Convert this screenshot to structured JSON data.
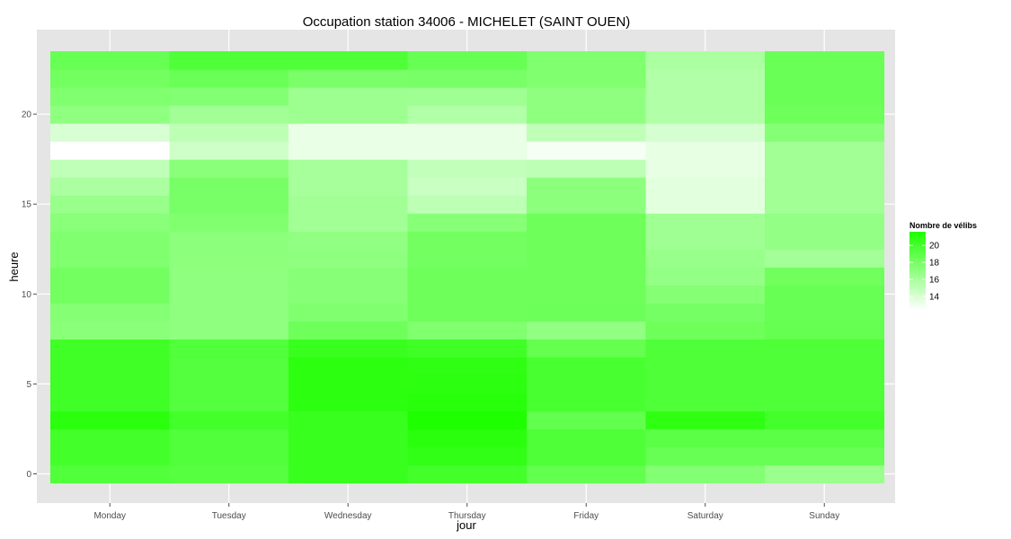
{
  "chart_data": {
    "type": "heatmap",
    "title": "Occupation station 34006 - MICHELET (SAINT OUEN)",
    "xlabel": "jour",
    "ylabel": "heure",
    "x_categories": [
      "Monday",
      "Tuesday",
      "Wednesday",
      "Thursday",
      "Friday",
      "Saturday",
      "Sunday"
    ],
    "y_ticks": [
      0,
      5,
      10,
      15,
      20
    ],
    "hours": [
      0,
      1,
      2,
      3,
      4,
      5,
      6,
      7,
      8,
      9,
      10,
      11,
      12,
      13,
      14,
      15,
      16,
      17,
      18,
      19,
      20,
      21,
      22,
      23
    ],
    "values": [
      [
        19.5,
        19.3,
        20.5,
        20.1,
        18.8,
        17.5,
        16.5
      ],
      [
        20.1,
        19.5,
        20.5,
        20.8,
        19.6,
        18.6,
        18.6
      ],
      [
        20.1,
        19.5,
        20.5,
        21.1,
        19.6,
        19.1,
        19.1
      ],
      [
        21.1,
        20.1,
        20.5,
        21.6,
        18.8,
        20.9,
        20.1
      ],
      [
        20.2,
        19.4,
        21.0,
        21.2,
        19.9,
        19.6,
        19.6
      ],
      [
        20.2,
        19.4,
        21.0,
        21.0,
        19.9,
        19.6,
        19.6
      ],
      [
        20.2,
        19.4,
        21.0,
        20.9,
        19.9,
        19.6,
        19.6
      ],
      [
        20.2,
        19.5,
        20.5,
        20.2,
        18.7,
        19.6,
        19.6
      ],
      [
        17.2,
        17.0,
        18.3,
        17.6,
        16.9,
        18.3,
        18.7
      ],
      [
        17.4,
        17.0,
        17.6,
        18.3,
        18.4,
        18.0,
        18.6
      ],
      [
        18.1,
        17.0,
        17.3,
        18.3,
        18.3,
        17.4,
        18.6
      ],
      [
        18.1,
        17.0,
        17.3,
        18.3,
        18.3,
        16.8,
        18.2
      ],
      [
        17.6,
        17.1,
        17.0,
        18.1,
        18.3,
        16.6,
        16.1
      ],
      [
        17.6,
        17.1,
        16.9,
        18.1,
        18.3,
        16.3,
        16.8
      ],
      [
        17.2,
        17.6,
        16.2,
        17.3,
        18.3,
        16.3,
        16.8
      ],
      [
        16.6,
        17.9,
        16.2,
        15.1,
        17.1,
        13.6,
        16.2
      ],
      [
        15.8,
        17.9,
        16.0,
        14.6,
        17.1,
        13.6,
        16.2
      ],
      [
        15.0,
        17.2,
        16.0,
        14.9,
        15.1,
        13.4,
        16.2
      ],
      [
        12.4,
        14.4,
        13.3,
        13.3,
        12.8,
        13.4,
        16.2
      ],
      [
        14.0,
        15.1,
        13.3,
        13.3,
        15.0,
        14.1,
        17.4
      ],
      [
        17.0,
        16.2,
        16.4,
        15.6,
        17.0,
        15.6,
        18.3
      ],
      [
        17.6,
        17.5,
        16.4,
        16.3,
        17.0,
        15.6,
        18.5
      ],
      [
        18.1,
        18.5,
        17.8,
        17.9,
        17.6,
        15.6,
        18.5
      ],
      [
        18.6,
        19.6,
        19.6,
        18.6,
        17.6,
        15.8,
        18.5
      ]
    ],
    "legend": {
      "title": "Nombre de vélibs",
      "ticks": [
        14,
        16,
        18,
        20
      ],
      "range": [
        12.4,
        21.6
      ],
      "placement": "right"
    },
    "colors": {
      "low": "#ffffff",
      "high": "#1eff00",
      "panel": "#e5e5e5",
      "grid": "#ffffff"
    },
    "grid": true
  }
}
